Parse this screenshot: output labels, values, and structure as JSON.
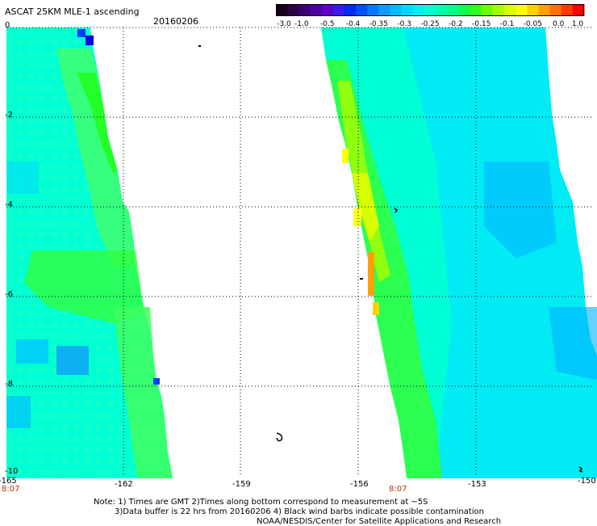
{
  "header": {
    "title": "ASCAT 25KM MLE-1 ascending",
    "date": "20160206"
  },
  "colorbar": {
    "labels": [
      "-3.0",
      "-1.0",
      "-0.5",
      "-0.4",
      "-0.35",
      "-0.3",
      "-0.25",
      "-0.2",
      "-0.15",
      "-0.1",
      "-0.05",
      "0.0",
      "1.0"
    ],
    "colors": [
      "#1a001a",
      "#2a0044",
      "#3a0070",
      "#5000a0",
      "#6000c8",
      "#3a1ae6",
      "#0028f5",
      "#0050ff",
      "#0078ff",
      "#0a9cff",
      "#00bcff",
      "#00d8ff",
      "#00f0f0",
      "#00ffd6",
      "#00ffb0",
      "#00ff8a",
      "#10ff50",
      "#30ff20",
      "#70ff00",
      "#a8ff00",
      "#d8ff00",
      "#ffff00",
      "#ffd000",
      "#ffa000",
      "#ff7000",
      "#ff3c00",
      "#ff0000"
    ]
  },
  "map": {
    "lon_range": [
      -165,
      -150
    ],
    "lat_range": [
      -10,
      0
    ],
    "x_ticks": [
      "-165",
      "-162",
      "-159",
      "-156",
      "-153",
      "-150"
    ],
    "y_ticks": [
      "0",
      "-2",
      "-4",
      "-6",
      "-8",
      "-10"
    ],
    "orbit_times": [
      "8:07",
      "8:07"
    ]
  },
  "notes": {
    "line1": "Note: 1) Times are GMT 2)Times along bottom correspond to measurement at ~5S",
    "line2": "3)Data buffer is 22 hrs from 20160206 4) Black wind barbs indicate possible contamination",
    "line3": "NOAA/NESDIS/Center for Satellite Applications and Research"
  }
}
